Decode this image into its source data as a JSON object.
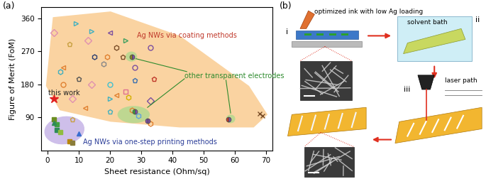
{
  "chart_data": {
    "type": "scatter",
    "panel_label": "(a)",
    "x_label": "Sheet resistance (Ohm/sq)",
    "y_label": "Figure of Merit (FoM)",
    "xlim": [
      -2,
      72
    ],
    "xticks": [
      0,
      10,
      20,
      30,
      40,
      50,
      60,
      70
    ],
    "ylim": [
      0,
      390
    ],
    "yticks": [
      90,
      180,
      270,
      360
    ],
    "annotations": [
      {
        "text": "Ag NWs via coating methods",
        "color": "#c0392b"
      },
      {
        "text": "other transparent electrodes",
        "color": "#2e8b2e"
      },
      {
        "text": "this work",
        "color": "#222222"
      },
      {
        "text": "Ag NWs via one-step printing methods",
        "color": "#2c3e99"
      }
    ],
    "series": [
      {
        "marker": "pentagon_open",
        "x": [
          7,
          24,
          10,
          34,
          28,
          8,
          20
        ],
        "values": [
          290,
          255,
          195,
          195,
          190,
          85,
          105
        ],
        "colors": [
          "#c8a040",
          "#7b4f2a",
          "#555555",
          "#c0392b",
          "#3a6fb0",
          "#c8a040",
          "#40b0c0"
        ]
      },
      {
        "marker": "hexagon_open",
        "x": [
          22,
          15,
          19,
          18,
          4,
          26,
          27,
          29,
          33
        ],
        "values": [
          280,
          255,
          255,
          235,
          215,
          145,
          110,
          95,
          72
        ],
        "colors": [
          "#7b4f2a",
          "#2c3e70",
          "#e08030",
          "#888888",
          "#40b0c0",
          "#d4b000",
          "#e08030",
          "#60a0e0",
          "#e08030"
        ]
      },
      {
        "marker": "triangle_right_open",
        "x": [
          9,
          14,
          25,
          20
        ],
        "values": [
          345,
          325,
          300,
          140
        ],
        "colors": [
          "#40b0c0",
          "#40b0c0",
          "#40a060",
          "#40b0c0"
        ]
      },
      {
        "marker": "triangle_left_open",
        "x": [
          20,
          5,
          12,
          22
        ],
        "values": [
          320,
          225,
          115,
          150
        ],
        "colors": [
          "#7b4fa0",
          "#e08030",
          "#e08030",
          "#e08030"
        ]
      },
      {
        "marker": "diamond_open",
        "x": [
          2,
          13,
          14,
          8,
          33
        ],
        "values": [
          320,
          300,
          180,
          140,
          135
        ],
        "colors": [
          "#e090b0",
          "#e090b0",
          "#e090b0",
          "#e090b0",
          "#7b4fa0"
        ]
      },
      {
        "marker": "circle_open",
        "x": [
          33,
          28,
          5,
          20
        ],
        "values": [
          280,
          225,
          180,
          180
        ],
        "colors": [
          "#7b4fa0",
          "#7b4fa0",
          "#e08030",
          "#40c0d0"
        ]
      },
      {
        "marker": "square_open",
        "x": [
          25
        ],
        "values": [
          160
        ],
        "colors": [
          "#e07090"
        ]
      },
      {
        "marker": "x",
        "x": [
          68,
          69
        ],
        "values": [
          100,
          95
        ],
        "colors": [
          "#7b4f2a",
          "#7b4f2a"
        ]
      },
      {
        "marker": "circle_half",
        "x": [
          27,
          28,
          32,
          58
        ],
        "values": [
          255,
          105,
          80,
          85
        ],
        "colors": [
          "#8a8a20",
          "#40a040",
          "#7b4fa0",
          "#c0392b"
        ]
      },
      {
        "marker": "square_filled",
        "x": [
          2,
          3,
          3,
          4,
          7,
          8
        ],
        "values": [
          85,
          70,
          55,
          50,
          25,
          20
        ],
        "colors": [
          "#6b8e23",
          "#40a040",
          "#2e8b57",
          "#8fbc3f",
          "#b8860b",
          "#8b7d3a"
        ]
      },
      {
        "marker": "triangle_filled",
        "x": [
          2,
          10
        ],
        "values": [
          75,
          45
        ],
        "colors": [
          "#2e8b57",
          "#3a6fd0"
        ]
      },
      {
        "marker": "star_filled",
        "x": [
          2
        ],
        "values": [
          140
        ],
        "colors": [
          "#e02020"
        ]
      }
    ]
  },
  "diagram": {
    "panel_label": "(b)",
    "steps": [
      {
        "label": "i",
        "text": "optimized ink with low Ag loading"
      },
      {
        "label": "ii",
        "text": "solvent bath"
      },
      {
        "label": "iii",
        "text": "laser path"
      }
    ]
  }
}
